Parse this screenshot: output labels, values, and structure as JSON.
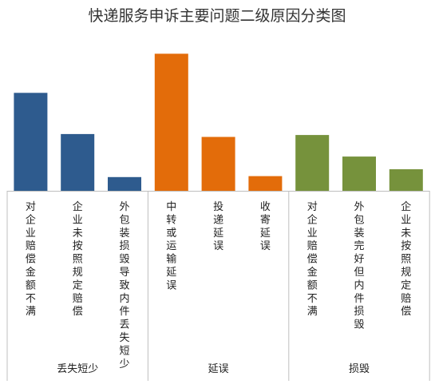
{
  "chart_data": {
    "type": "bar",
    "title": "快递服务申诉主要问题二级原因分类图",
    "groups": [
      {
        "name": "丢失短少",
        "color": "#2E5B8E",
        "categories": [
          "对企业赔偿金额不满",
          "企业未按照规定赔偿",
          "外包装损毁导致内件丢失短少"
        ],
        "values": [
          100,
          58,
          14
        ]
      },
      {
        "name": "延误",
        "color": "#E36C0A",
        "categories": [
          "中转或运输延误",
          "投递延误",
          "收寄延误"
        ],
        "values": [
          140,
          55,
          15
        ]
      },
      {
        "name": "损毁",
        "color": "#76923C",
        "categories": [
          "对企业赔偿金额不满",
          "外包装完好但内件损毁",
          "企业未按照规定赔偿"
        ],
        "values": [
          57,
          35,
          22
        ]
      }
    ],
    "ylim": [
      0,
      150
    ],
    "grid": false,
    "legend": "none"
  }
}
